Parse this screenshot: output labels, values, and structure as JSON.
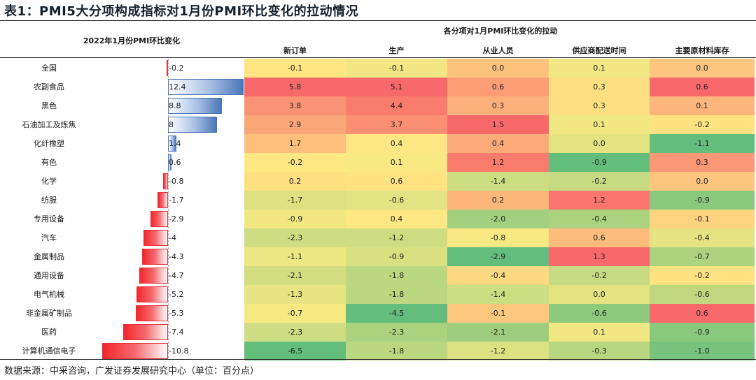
{
  "title": "表1：PMI5大分项构成指标对1月份PMI环比变化的拉动情况",
  "left_header": "2022年1月份PMI环比变化",
  "group_header": "各分项对1月PMI环比变化的拉动",
  "source": "数据来源：中采咨询，广发证券发展研究中心（单位：百分点）",
  "colors": {
    "positive_bar": "#4a76b8",
    "negative_bar": "#f2262c",
    "heat_red": "#f8696b",
    "heat_yellow": "#ffeb84",
    "heat_green": "#63be7b"
  },
  "chart_data": {
    "type": "table",
    "title": "PMI5大分项构成指标对1月份PMI环比变化的拉动情况",
    "unit": "百分点",
    "bar_column": {
      "name": "2022年1月份PMI环比变化",
      "bar_scale_max": 12.4
    },
    "columns": [
      "新订单",
      "生产",
      "从业人员",
      "供应商配送时间",
      "主要原材料库存"
    ],
    "rows": [
      {
        "label": "全国",
        "change": "-0.2",
        "value": -0.2,
        "cells": [
          "-0.1",
          "-0.1",
          "0.0",
          "0.1",
          "0.0"
        ]
      },
      {
        "label": "农副食品",
        "change": "12.4",
        "value": 12.4,
        "cells": [
          "5.8",
          "5.1",
          "0.6",
          "0.3",
          "0.6"
        ]
      },
      {
        "label": "黑色",
        "change": "8.8",
        "value": 8.8,
        "cells": [
          "3.8",
          "4.4",
          "0.3",
          "0.3",
          "0.1"
        ]
      },
      {
        "label": "石油加工及炼焦",
        "change": "8",
        "value": 8,
        "cells": [
          "2.9",
          "3.7",
          "1.5",
          "0.1",
          "-0.2"
        ]
      },
      {
        "label": "化纤橡塑",
        "change": "1.4",
        "value": 1.4,
        "cells": [
          "1.7",
          "0.4",
          "0.4",
          "0.0",
          "-1.1"
        ]
      },
      {
        "label": "有色",
        "change": "0.6",
        "value": 0.6,
        "cells": [
          "-0.2",
          "0.1",
          "1.2",
          "-0.9",
          "0.3"
        ]
      },
      {
        "label": "化学",
        "change": "-0.8",
        "value": -0.8,
        "cells": [
          "0.2",
          "0.6",
          "-1.4",
          "-0.2",
          "0.0"
        ]
      },
      {
        "label": "纺服",
        "change": "-1.7",
        "value": -1.7,
        "cells": [
          "-1.7",
          "-0.6",
          "0.2",
          "1.2",
          "-0.9"
        ]
      },
      {
        "label": "专用设备",
        "change": "-2.9",
        "value": -2.9,
        "cells": [
          "-0.9",
          "0.4",
          "-2.0",
          "-0.4",
          "-0.1"
        ]
      },
      {
        "label": "汽车",
        "change": "-4",
        "value": -4,
        "cells": [
          "-2.3",
          "-1.2",
          "-0.8",
          "0.6",
          "-0.4"
        ]
      },
      {
        "label": "金属制品",
        "change": "-4.3",
        "value": -4.3,
        "cells": [
          "-1.1",
          "-0.9",
          "-2.9",
          "1.3",
          "-0.7"
        ]
      },
      {
        "label": "通用设备",
        "change": "-4.7",
        "value": -4.7,
        "cells": [
          "-2.1",
          "-1.8",
          "-0.4",
          "-0.2",
          "-0.2"
        ]
      },
      {
        "label": "电气机械",
        "change": "-5.2",
        "value": -5.2,
        "cells": [
          "-1.3",
          "-1.8",
          "-1.4",
          "0.0",
          "-0.6"
        ]
      },
      {
        "label": "非金属矿制品",
        "change": "-5.3",
        "value": -5.3,
        "cells": [
          "-0.7",
          "-4.5",
          "-0.1",
          "-0.6",
          "0.6"
        ]
      },
      {
        "label": "医药",
        "change": "-7.4",
        "value": -7.4,
        "cells": [
          "-2.3",
          "-2.3",
          "-2.1",
          "0.1",
          "-0.9"
        ]
      },
      {
        "label": "计算机通信电子",
        "change": "-10.8",
        "value": -10.8,
        "cells": [
          "-6.5",
          "-1.8",
          "-1.2",
          "-0.3",
          "-1.0"
        ]
      }
    ]
  }
}
